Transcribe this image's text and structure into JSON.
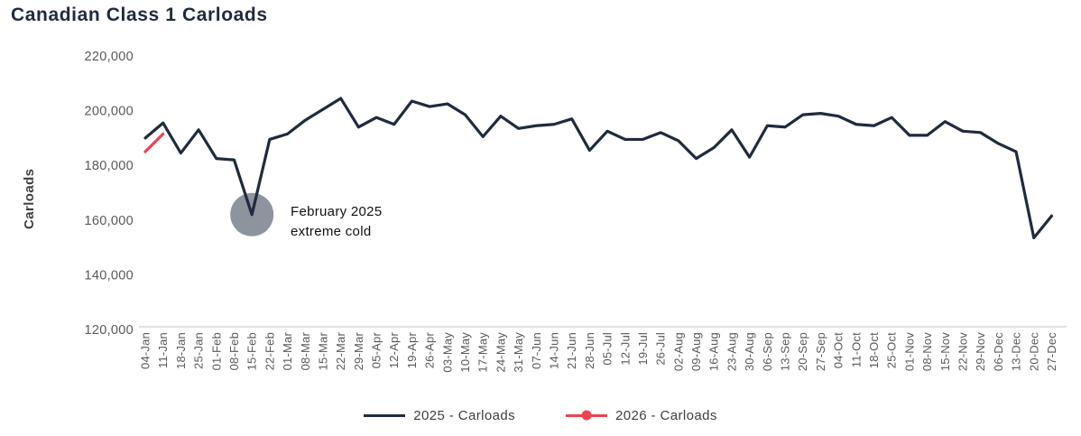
{
  "title": "Canadian Class 1 Carloads",
  "colors": {
    "navy": "#1f2b3e",
    "red": "#ef4351",
    "annotation_circle": "#8e949e",
    "axis_text": "#595959",
    "axis_line": "#d9d9d9",
    "legend_text": "#404040",
    "annotation_text": "#111111"
  },
  "chart_data": {
    "type": "line",
    "title": "Canadian Class 1 Carloads",
    "xlabel": "",
    "ylabel": "Carloads",
    "ylim": [
      120000,
      220000
    ],
    "yticks": [
      120000,
      140000,
      160000,
      180000,
      200000,
      220000
    ],
    "grid": false,
    "legend_position": "bottom-center",
    "x": [
      "04-Jan",
      "11-Jan",
      "18-Jan",
      "25-Jan",
      "01-Feb",
      "08-Feb",
      "15-Feb",
      "22-Feb",
      "01-Mar",
      "08-Mar",
      "15-Mar",
      "22-Mar",
      "29-Mar",
      "05-Apr",
      "12-Apr",
      "19-Apr",
      "26-Apr",
      "03-May",
      "10-May",
      "17-May",
      "24-May",
      "31-May",
      "07-Jun",
      "14-Jun",
      "21-Jun",
      "28-Jun",
      "05-Jul",
      "12-Jul",
      "19-Jul",
      "26-Jul",
      "02-Aug",
      "09-Aug",
      "16-Aug",
      "23-Aug",
      "30-Aug",
      "06-Sep",
      "13-Sep",
      "20-Sep",
      "27-Sep",
      "04-Oct",
      "11-Oct",
      "18-Oct",
      "25-Oct",
      "01-Nov",
      "08-Nov",
      "15-Nov",
      "22-Nov",
      "29-Nov",
      "06-Dec",
      "13-Dec",
      "20-Dec",
      "27-Dec"
    ],
    "series": [
      {
        "name": "2025 - Carloads",
        "color": "#1f2b3e",
        "values": [
          190000,
          195500,
          184500,
          193000,
          182500,
          182000,
          162000,
          189500,
          191500,
          196500,
          200500,
          204500,
          194000,
          197500,
          195000,
          203500,
          201500,
          202500,
          198500,
          190500,
          198000,
          193500,
          194500,
          195000,
          197000,
          185500,
          192500,
          189500,
          189500,
          192000,
          189000,
          182500,
          186500,
          193000,
          183000,
          194500,
          194000,
          198500,
          199000,
          198000,
          195000,
          194500,
          197500,
          191000,
          191000,
          196000,
          192500,
          192000,
          188000,
          185000,
          153500,
          161500
        ]
      },
      {
        "name": "2026 - Carloads",
        "color": "#ef4351",
        "values": [
          185000,
          191500
        ]
      }
    ],
    "annotation": {
      "week": "15-Feb",
      "value": 162000,
      "line1": "February 2025",
      "line2": "extreme cold"
    }
  }
}
